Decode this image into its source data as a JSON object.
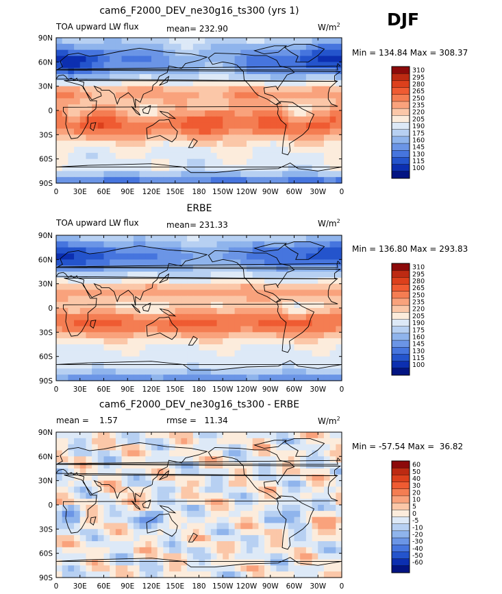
{
  "season": "DJF",
  "chart_data": [
    {
      "type": "heatmap",
      "title": "cam6_F2000_DEV_ne30g16_ts300 (yrs 1)",
      "left_label": "TOA upward LW flux",
      "center_label": "mean= 232.90",
      "units_label": "W/m",
      "units_exp": "2",
      "minmax": "Min = 134.84 Max = 308.37",
      "min": 134.84,
      "max": 308.37,
      "x_ticks": [
        "0",
        "30E",
        "60E",
        "90E",
        "120E",
        "150E",
        "180",
        "150W",
        "120W",
        "90W",
        "60W",
        "30W",
        "0"
      ],
      "y_ticks": [
        "90N",
        "60N",
        "30N",
        "0",
        "30S",
        "60S",
        "90S"
      ],
      "colorbar_levels": [
        "310",
        "295",
        "280",
        "265",
        "250",
        "235",
        "220",
        "205",
        "190",
        "175",
        "160",
        "145",
        "130",
        "115",
        "100"
      ],
      "colorbar_colors": [
        "#8c0a0a",
        "#bd2a12",
        "#dc401c",
        "#ef5b32",
        "#f47d52",
        "#f9a27c",
        "#fbc7a8",
        "#fcecdc",
        "#dde9f7",
        "#b7d0f2",
        "#8fb4ec",
        "#6b95e6",
        "#4675de",
        "#2454cc",
        "#0c2fb0",
        "#031482"
      ],
      "pattern": "model"
    },
    {
      "type": "heatmap",
      "title": "ERBE",
      "left_label": "TOA upward LW flux",
      "center_label": "mean= 231.33",
      "units_label": "W/m",
      "units_exp": "2",
      "minmax": "Min = 136.80 Max = 293.83",
      "min": 136.8,
      "max": 293.83,
      "x_ticks": [
        "0",
        "30E",
        "60E",
        "90E",
        "120E",
        "150E",
        "180",
        "150W",
        "120W",
        "90W",
        "60W",
        "30W",
        "0"
      ],
      "y_ticks": [
        "90N",
        "60N",
        "30N",
        "0",
        "30S",
        "60S",
        "90S"
      ],
      "colorbar_levels": [
        "310",
        "295",
        "280",
        "265",
        "250",
        "235",
        "220",
        "205",
        "190",
        "175",
        "160",
        "145",
        "130",
        "115",
        "100"
      ],
      "colorbar_colors": [
        "#8c0a0a",
        "#bd2a12",
        "#dc401c",
        "#ef5b32",
        "#f47d52",
        "#f9a27c",
        "#fbc7a8",
        "#fcecdc",
        "#dde9f7",
        "#b7d0f2",
        "#8fb4ec",
        "#6b95e6",
        "#4675de",
        "#2454cc",
        "#0c2fb0",
        "#031482"
      ],
      "pattern": "obs"
    },
    {
      "type": "heatmap",
      "title": "cam6_F2000_DEV_ne30g16_ts300 - ERBE",
      "left_label": "mean =    1.57",
      "center_label": "rmse =   11.34",
      "units_label": "W/m",
      "units_exp": "2",
      "minmax": "Min = -57.54 Max =  36.82",
      "min": -57.54,
      "max": 36.82,
      "x_ticks": [
        "0",
        "30E",
        "60E",
        "90E",
        "120E",
        "150E",
        "180",
        "150W",
        "120W",
        "90W",
        "60W",
        "30W",
        "0"
      ],
      "y_ticks": [
        "90N",
        "60N",
        "30N",
        "0",
        "30S",
        "60S",
        "90S"
      ],
      "colorbar_levels": [
        "60",
        "50",
        "40",
        "30",
        "20",
        "10",
        "5",
        "0",
        "-5",
        "-10",
        "-20",
        "-30",
        "-40",
        "-50",
        "-60"
      ],
      "colorbar_colors": [
        "#8c0a0a",
        "#bd2a12",
        "#dc401c",
        "#ef5b32",
        "#f47d52",
        "#f9a27c",
        "#fbc7a8",
        "#fcecdc",
        "#dde9f7",
        "#b7d0f2",
        "#8fb4ec",
        "#6b95e6",
        "#4675de",
        "#2454cc",
        "#0c2fb0",
        "#031482"
      ],
      "pattern": "diff"
    }
  ]
}
